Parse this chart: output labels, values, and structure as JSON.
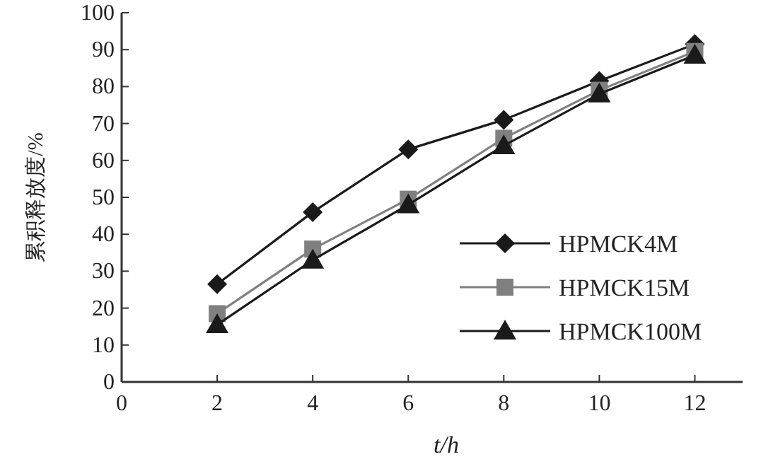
{
  "chart_data": {
    "type": "line",
    "xlabel": "t/h",
    "ylabel": "累积释放度/%",
    "x": [
      2,
      4,
      6,
      8,
      10,
      12
    ],
    "xlim": [
      0,
      13
    ],
    "xticks": [
      0,
      2,
      4,
      6,
      8,
      10,
      12
    ],
    "ylim": [
      0,
      100
    ],
    "yticks": [
      0,
      10,
      20,
      30,
      40,
      50,
      60,
      70,
      80,
      90,
      100
    ],
    "legend": "right",
    "line_style": "solid",
    "grid": false,
    "series": [
      {
        "name": "HPMCK4M",
        "color": "#1a1a1a",
        "marker": "diamond",
        "values": [
          26.5,
          46,
          63,
          71,
          81.5,
          91.5
        ]
      },
      {
        "name": "HPMCK15M",
        "color": "#808080",
        "marker": "square",
        "values": [
          18.5,
          36,
          49.5,
          66,
          79,
          89.5
        ]
      },
      {
        "name": "HPMCK100M",
        "color": "#1a1a1a",
        "marker": "triangle",
        "values": [
          15.5,
          33,
          48,
          64,
          78,
          88.5
        ]
      }
    ]
  }
}
